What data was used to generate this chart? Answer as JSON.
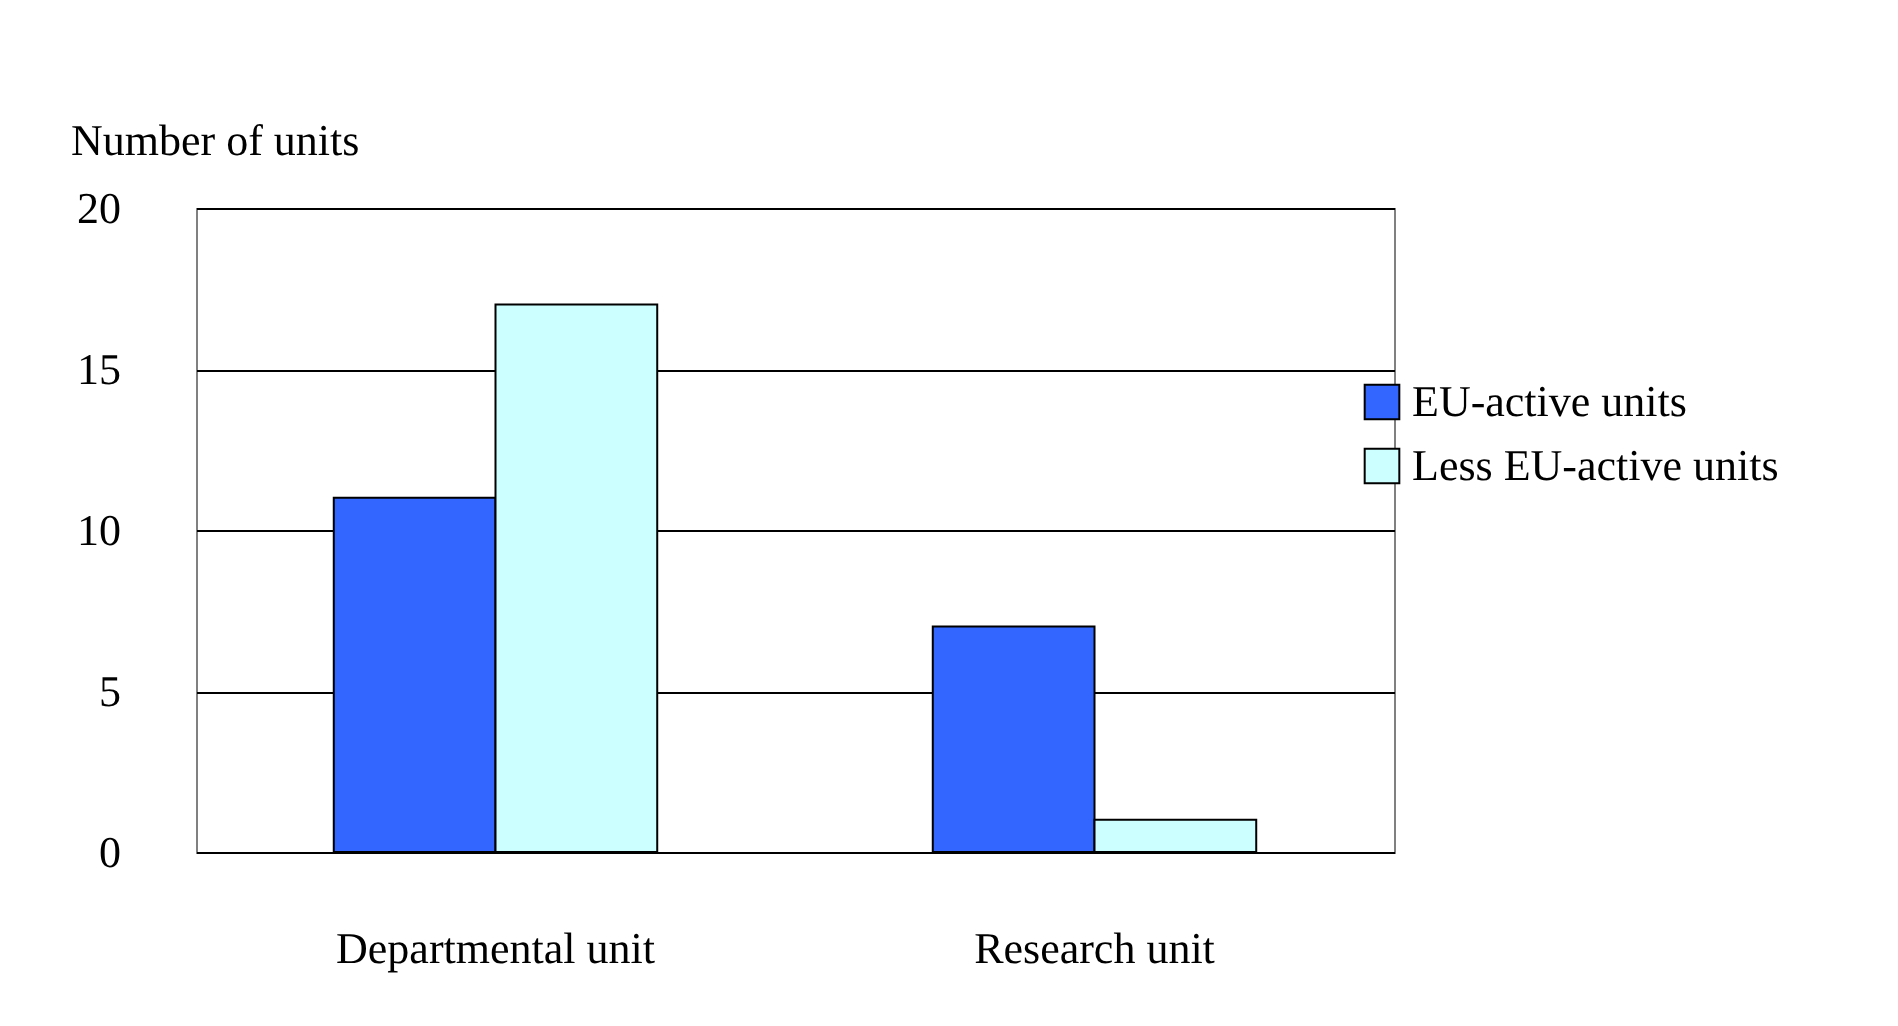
{
  "chart_data": {
    "type": "bar",
    "ylabel": "Number of units",
    "categories": [
      "Departmental unit",
      "Research unit"
    ],
    "series": [
      {
        "name": "EU-active units",
        "color": "#3366ff",
        "values": [
          11,
          7
        ]
      },
      {
        "name": "Less EU-active units",
        "color": "#ccffff",
        "values": [
          17,
          1
        ]
      }
    ],
    "ylim": [
      0,
      20
    ],
    "yticks": [
      0,
      5,
      10,
      15,
      20
    ],
    "grid": "y",
    "legend": "right"
  }
}
